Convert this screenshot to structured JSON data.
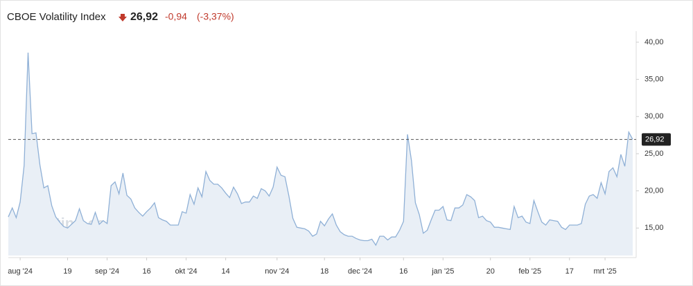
{
  "header": {
    "title": "CBOE Volatility Index",
    "price": "26,92",
    "change": "-0,94",
    "change_pct": "(-3,37%)"
  },
  "chart_data": {
    "type": "area",
    "watermark": "Investing.com",
    "series": [
      {
        "name": "CBOE Volatility Index",
        "color": "#8fb0d6",
        "fill": "#e9eff6",
        "values": [
          16.5,
          17.7,
          16.4,
          18.5,
          23.4,
          38.6,
          27.7,
          27.8,
          23.5,
          20.4,
          20.7,
          18.0,
          16.5,
          15.8,
          15.2,
          15.0,
          15.5,
          16.0,
          17.6,
          16.0,
          15.6,
          15.5,
          17.1,
          15.5,
          16.0,
          15.6,
          20.7,
          21.2,
          19.6,
          22.4,
          19.4,
          18.9,
          17.7,
          17.1,
          16.6,
          17.2,
          17.7,
          18.4,
          16.4,
          16.1,
          15.9,
          15.4,
          15.4,
          15.4,
          17.2,
          17.0,
          19.5,
          18.2,
          20.4,
          19.2,
          22.6,
          21.4,
          20.9,
          20.9,
          20.4,
          19.7,
          19.1,
          20.5,
          19.6,
          18.3,
          18.5,
          18.5,
          19.3,
          19.0,
          20.3,
          20.0,
          19.3,
          20.5,
          23.2,
          22.1,
          21.9,
          19.3,
          16.3,
          15.1,
          15.0,
          14.9,
          14.6,
          13.9,
          14.2,
          15.9,
          15.3,
          16.2,
          16.9,
          15.4,
          14.5,
          14.1,
          13.9,
          13.9,
          13.6,
          13.4,
          13.3,
          13.3,
          13.5,
          12.7,
          13.9,
          13.9,
          13.4,
          13.8,
          13.8,
          14.7,
          15.9,
          27.6,
          24.1,
          18.4,
          16.8,
          14.3,
          14.7,
          16.1,
          17.4,
          17.4,
          17.9,
          16.1,
          16.0,
          17.7,
          17.7,
          18.1,
          19.5,
          19.2,
          18.7,
          16.4,
          16.6,
          16.0,
          15.8,
          15.1,
          15.1,
          15.0,
          14.9,
          14.8,
          17.9,
          16.4,
          16.6,
          15.8,
          15.6,
          18.7,
          17.2,
          15.8,
          15.4,
          16.1,
          16.0,
          15.9,
          15.1,
          14.8,
          15.4,
          15.4,
          15.4,
          15.6,
          18.2,
          19.3,
          19.5,
          19.0,
          21.1,
          19.6,
          22.6,
          23.1,
          21.9,
          24.9,
          23.3,
          27.9,
          26.92
        ]
      }
    ],
    "ylim": [
      11.3,
      41.3
    ],
    "yticks": [
      {
        "value": 15,
        "label": "15,00"
      },
      {
        "value": 20,
        "label": "20,00"
      },
      {
        "value": 25,
        "label": "25,00"
      },
      {
        "value": 30,
        "label": "30,00"
      },
      {
        "value": 35,
        "label": "35,00"
      },
      {
        "value": 40,
        "label": "40,00"
      }
    ],
    "xlim": [
      0,
      158
    ],
    "xticks": [
      {
        "value": 3,
        "label": "aug '24"
      },
      {
        "value": 15,
        "label": "19"
      },
      {
        "value": 25,
        "label": "sep '24"
      },
      {
        "value": 35,
        "label": "16"
      },
      {
        "value": 45,
        "label": "okt '24"
      },
      {
        "value": 55,
        "label": "14"
      },
      {
        "value": 68,
        "label": "nov '24"
      },
      {
        "value": 80,
        "label": "18"
      },
      {
        "value": 89,
        "label": "dec '24"
      },
      {
        "value": 100,
        "label": "16"
      },
      {
        "value": 110,
        "label": "jan '25"
      },
      {
        "value": 122,
        "label": "20"
      },
      {
        "value": 132,
        "label": "feb '25"
      },
      {
        "value": 142,
        "label": "17"
      },
      {
        "value": 151,
        "label": "mrt '25"
      }
    ]
  }
}
